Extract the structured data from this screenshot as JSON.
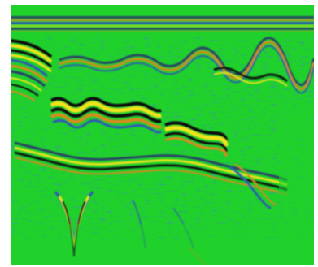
{
  "image": {
    "kind": "ground-penetrating radar radargram",
    "colors": {
      "background_green": "#1fd12a",
      "band_dark": "#2a3a6a",
      "band_blue": "#2d5bb0",
      "band_yellow": "#f2e21a",
      "band_orange": "#d98a1f",
      "band_black": "#111111",
      "outer_background": "#ffffff"
    }
  }
}
